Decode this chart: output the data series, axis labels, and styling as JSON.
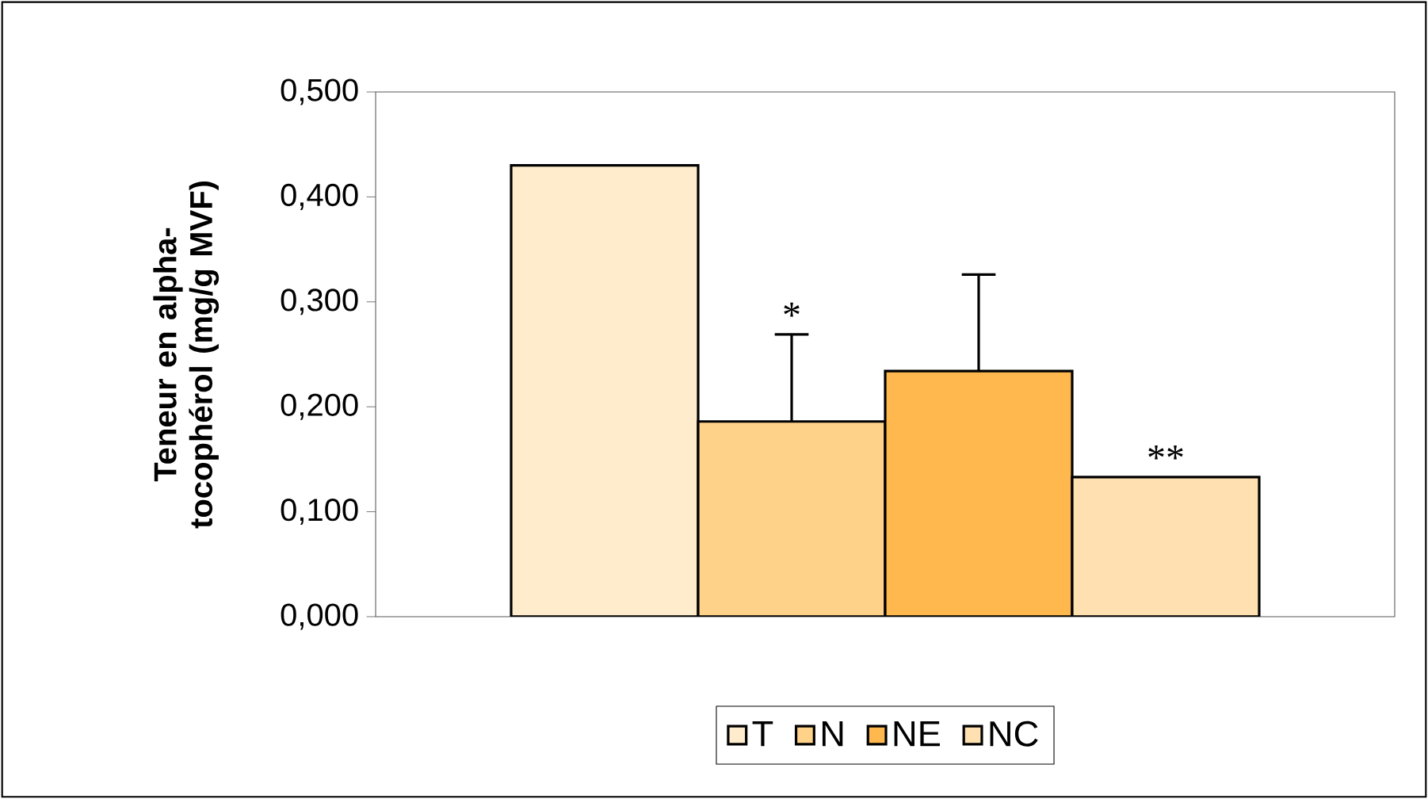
{
  "chart_data": {
    "type": "bar",
    "ylabel": "Teneur en alpha-tocophérol (mg/g MVF)",
    "categories": [
      null
    ],
    "series": [
      {
        "name": "T",
        "color": "#ffeccc",
        "values": [
          0.43
        ]
      },
      {
        "name": "N",
        "color": "#ffd28a",
        "values": [
          0.186
        ],
        "errors": [
          0.083
        ],
        "value_labels": [
          "*"
        ]
      },
      {
        "name": "NE",
        "color": "#ffb84d",
        "values": [
          0.234
        ],
        "errors": [
          0.092
        ]
      },
      {
        "name": "NC",
        "color": "#ffe0b0",
        "values": [
          0.133
        ],
        "value_labels": [
          "**"
        ]
      }
    ],
    "ylim": [
      0,
      0.5
    ],
    "yticks": [
      {
        "value": 0,
        "label": "0,000"
      },
      {
        "value": 0.1,
        "label": "0,100"
      },
      {
        "value": 0.2,
        "label": "0,200"
      },
      {
        "value": 0.3,
        "label": "0,300"
      },
      {
        "value": 0.4,
        "label": "0,400"
      },
      {
        "value": 0.5,
        "label": "0,500"
      }
    ],
    "legend": "bottom"
  }
}
